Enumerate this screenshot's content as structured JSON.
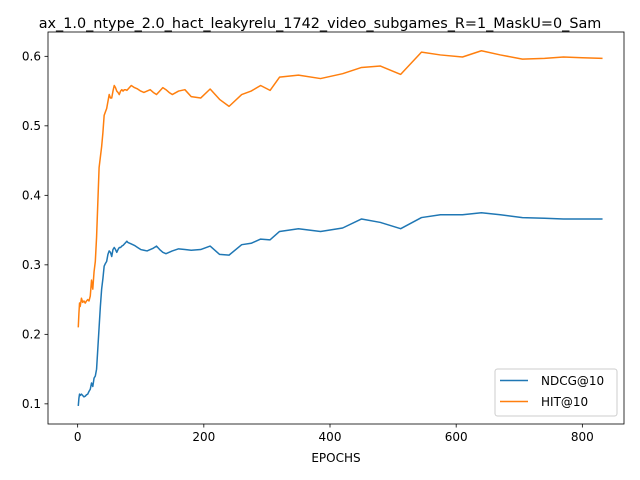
{
  "chart_data": {
    "type": "line",
    "title": "ax_1.0_ntype_2.0_hact_leakyrelu_1742_video_subgames_R=1_MaskU=0_Sam",
    "xlabel": "EPOCHS",
    "ylabel": "",
    "xlim": [
      -47,
      866
    ],
    "ylim": [
      0.071,
      0.635
    ],
    "xticks": [
      0,
      200,
      400,
      600,
      800
    ],
    "yticks": [
      0.1,
      0.2,
      0.3,
      0.4,
      0.5,
      0.6
    ],
    "xtick_labels": [
      "0",
      "200",
      "400",
      "600",
      "800"
    ],
    "ytick_labels": [
      "0.1",
      "0.2",
      "0.3",
      "0.4",
      "0.5",
      "0.6"
    ],
    "grid": false,
    "legend_position": "bottom-right",
    "series": [
      {
        "name": "NDCG@10",
        "color": "#1f77b4",
        "x": [
          1,
          2,
          3,
          4,
          6,
          8,
          10,
          12,
          14,
          16,
          18,
          20,
          22,
          24,
          26,
          28,
          30,
          32,
          34,
          36,
          38,
          40,
          42,
          44,
          46,
          48,
          50,
          52,
          54,
          56,
          58,
          60,
          62,
          64,
          66,
          68,
          70,
          72,
          74,
          76,
          78,
          80,
          85,
          90,
          95,
          100,
          105,
          110,
          115,
          120,
          125,
          130,
          135,
          140,
          145,
          150,
          160,
          170,
          180,
          195,
          210,
          225,
          240,
          260,
          275,
          290,
          305,
          320,
          350,
          385,
          420,
          450,
          480,
          512,
          545,
          575,
          610,
          640,
          670,
          705,
          740,
          770,
          800,
          832
        ],
        "y": [
          0.097,
          0.108,
          0.114,
          0.112,
          0.114,
          0.112,
          0.11,
          0.111,
          0.113,
          0.114,
          0.118,
          0.121,
          0.13,
          0.125,
          0.137,
          0.14,
          0.15,
          0.18,
          0.21,
          0.24,
          0.265,
          0.28,
          0.298,
          0.302,
          0.305,
          0.315,
          0.32,
          0.318,
          0.312,
          0.322,
          0.325,
          0.322,
          0.318,
          0.322,
          0.325,
          0.325,
          0.327,
          0.328,
          0.33,
          0.332,
          0.334,
          0.332,
          0.33,
          0.328,
          0.325,
          0.322,
          0.321,
          0.32,
          0.322,
          0.324,
          0.327,
          0.322,
          0.318,
          0.316,
          0.318,
          0.32,
          0.323,
          0.322,
          0.321,
          0.322,
          0.327,
          0.315,
          0.314,
          0.329,
          0.331,
          0.337,
          0.336,
          0.348,
          0.352,
          0.348,
          0.353,
          0.366,
          0.361,
          0.352,
          0.368,
          0.372,
          0.372,
          0.375,
          0.372,
          0.368,
          0.367,
          0.366,
          0.366,
          0.366
        ]
      },
      {
        "name": "HIT@10",
        "color": "#ff7f0e",
        "x": [
          1,
          2,
          3,
          4,
          6,
          8,
          10,
          12,
          14,
          16,
          18,
          20,
          22,
          24,
          26,
          28,
          30,
          32,
          34,
          36,
          38,
          40,
          42,
          44,
          46,
          48,
          50,
          52,
          54,
          56,
          58,
          60,
          62,
          64,
          66,
          68,
          70,
          72,
          74,
          76,
          78,
          80,
          85,
          90,
          95,
          100,
          105,
          110,
          115,
          120,
          125,
          130,
          135,
          140,
          145,
          150,
          160,
          170,
          180,
          195,
          210,
          225,
          240,
          260,
          275,
          290,
          305,
          320,
          350,
          385,
          420,
          450,
          480,
          512,
          545,
          575,
          610,
          640,
          670,
          705,
          740,
          770,
          800,
          832
        ],
        "y": [
          0.21,
          0.23,
          0.245,
          0.24,
          0.252,
          0.246,
          0.248,
          0.245,
          0.248,
          0.25,
          0.248,
          0.255,
          0.278,
          0.265,
          0.29,
          0.305,
          0.34,
          0.39,
          0.44,
          0.455,
          0.47,
          0.49,
          0.515,
          0.52,
          0.525,
          0.535,
          0.545,
          0.54,
          0.54,
          0.55,
          0.558,
          0.555,
          0.55,
          0.548,
          0.545,
          0.55,
          0.552,
          0.55,
          0.552,
          0.552,
          0.551,
          0.553,
          0.558,
          0.555,
          0.553,
          0.55,
          0.548,
          0.55,
          0.552,
          0.548,
          0.545,
          0.55,
          0.555,
          0.552,
          0.548,
          0.545,
          0.55,
          0.552,
          0.542,
          0.54,
          0.553,
          0.538,
          0.528,
          0.545,
          0.55,
          0.558,
          0.551,
          0.57,
          0.573,
          0.568,
          0.575,
          0.584,
          0.586,
          0.574,
          0.606,
          0.602,
          0.599,
          0.608,
          0.602,
          0.596,
          0.597,
          0.599,
          0.598,
          0.597
        ]
      }
    ]
  }
}
